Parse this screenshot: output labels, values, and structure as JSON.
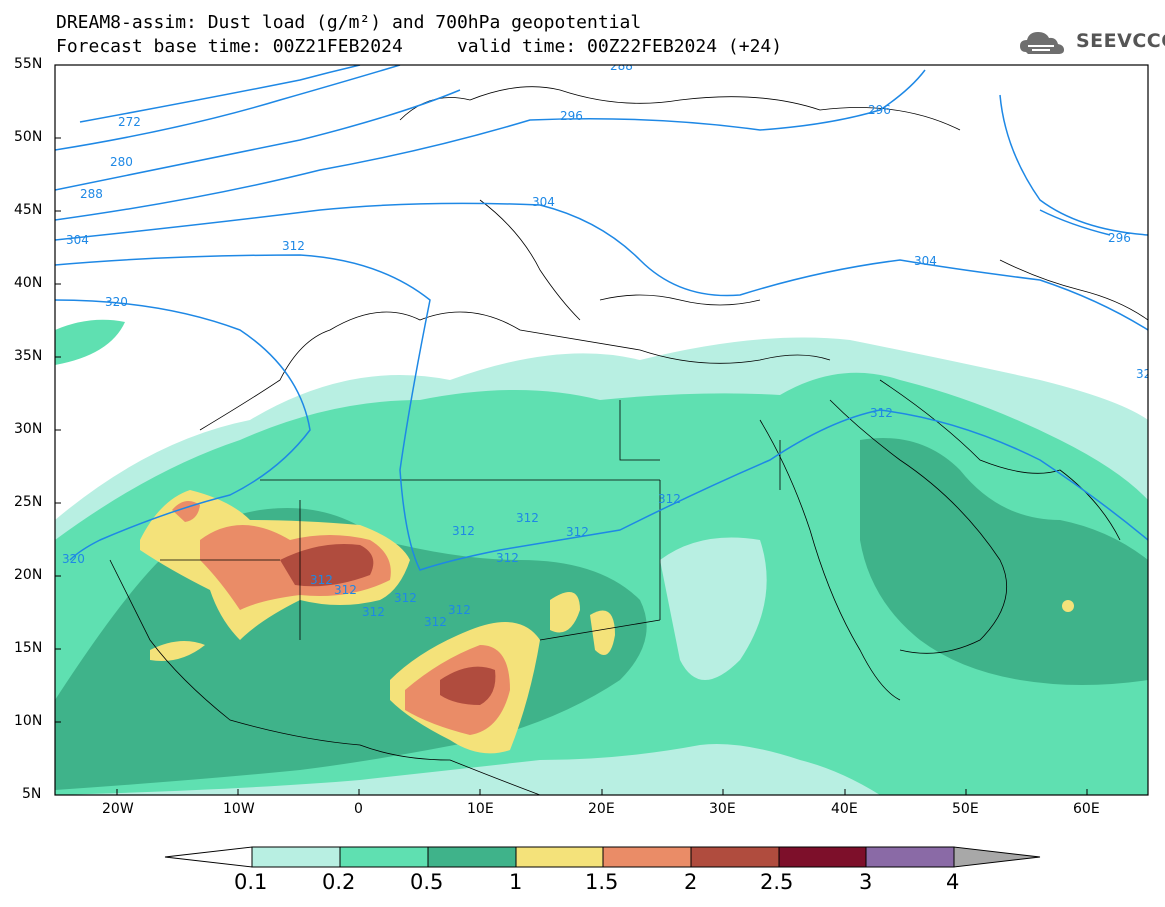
{
  "header": {
    "title_line1": "DREAM8-assim: Dust load (g/m²) and 700hPa geopotential",
    "title_line2": "Forecast base time: 00Z21FEB2024     valid time: 00Z22FEB2024 (+24)",
    "logo_text": "SEEVCCC",
    "logo_icon": "cloud-logo-icon"
  },
  "axes": {
    "lat_labels": [
      "55N",
      "50N",
      "45N",
      "40N",
      "35N",
      "30N",
      "25N",
      "20N",
      "15N",
      "10N",
      "5N"
    ],
    "lon_labels": [
      "20W",
      "10W",
      "0",
      "10E",
      "20E",
      "30E",
      "40E",
      "50E",
      "60E"
    ]
  },
  "contours": {
    "labels": [
      "288",
      "272",
      "280",
      "288",
      "296",
      "304",
      "312",
      "320",
      "296",
      "296",
      "304",
      "304",
      "312",
      "320",
      "312",
      "312",
      "312",
      "312",
      "312",
      "312",
      "312",
      "312",
      "312",
      "312",
      "296",
      "312",
      "32"
    ]
  },
  "colorbar": {
    "levels": [
      "0.1",
      "0.2",
      "0.5",
      "1",
      "1.5",
      "2",
      "2.5",
      "3",
      "4"
    ],
    "colors": [
      "#b8efe2",
      "#5fe0b1",
      "#3fb38a",
      "#f4e27a",
      "#ea8c67",
      "#b04c3e",
      "#7d0f2a",
      "#8a6aa6",
      "#a8a8a8"
    ]
  }
}
